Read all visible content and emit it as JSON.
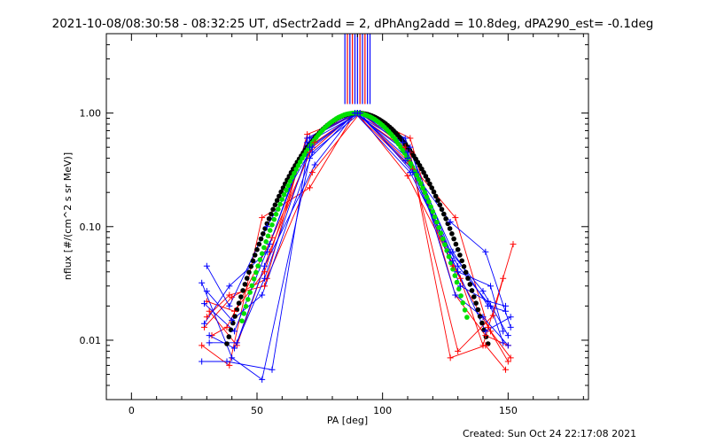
{
  "chart_data": {
    "type": "scatter",
    "title": "2021-10-08/08:30:58 - 08:32:25 UT, dSectr2add = 2, dPhAng2add = 10.8deg, dPA290_est= -0.1deg",
    "xlabel": "PA [deg]",
    "ylabel": "nflux [#/(cm^2 s sr MeV)]",
    "xlim": [
      -10,
      182
    ],
    "ylim": [
      0.003,
      5.0
    ],
    "yscale": "log",
    "x_ticks": [
      0,
      50,
      100,
      150
    ],
    "y_ticks": [
      0.01,
      0.1,
      1.0
    ],
    "y_tick_labels": [
      "0.01",
      "0.10",
      "1.00"
    ],
    "footer": "Created: Sun Oct 24 22:17:08 2021",
    "vertical_lines": {
      "x": [
        85,
        86,
        87,
        88,
        89,
        90,
        91,
        92,
        93,
        94,
        95
      ],
      "colors": [
        "#0000ff",
        "#ff0000",
        "#0000ff",
        "#ff0000",
        "#0000ff",
        "#0000ff",
        "#ff0000",
        "#0000ff",
        "#ff0000",
        "#0000ff",
        "#0000ff"
      ],
      "y_from": 1.2
    },
    "series": [
      {
        "name": "red-1",
        "color": "#ff0000",
        "x": [
          28,
          39,
          52,
          71,
          89,
          111,
          127,
          141,
          149
        ],
        "y": [
          0.009,
          0.006,
          0.12,
          0.22,
          1.0,
          0.45,
          0.007,
          0.009,
          0.0055
        ]
      },
      {
        "name": "red-2",
        "color": "#ff0000",
        "x": [
          30,
          41,
          53,
          70,
          90,
          110,
          129,
          142,
          150
        ],
        "y": [
          0.022,
          0.018,
          0.04,
          0.6,
          1.0,
          0.38,
          0.12,
          0.013,
          0.0065
        ]
      },
      {
        "name": "red-3",
        "color": "#ff0000",
        "x": [
          29,
          40,
          54,
          72,
          91,
          109,
          128,
          143,
          151
        ],
        "y": [
          0.013,
          0.024,
          0.035,
          0.3,
          1.0,
          0.5,
          0.045,
          0.012,
          0.007
        ]
      },
      {
        "name": "red-4",
        "color": "#ff0000",
        "x": [
          31,
          42,
          55,
          71,
          89,
          112,
          130,
          144,
          148
        ],
        "y": [
          0.018,
          0.009,
          0.06,
          0.45,
          1.0,
          0.32,
          0.008,
          0.0165,
          0.035
        ]
      },
      {
        "name": "red-5",
        "color": "#ff0000",
        "x": [
          32,
          38,
          56,
          73,
          90,
          110,
          131,
          140,
          152
        ],
        "y": [
          0.011,
          0.013,
          0.08,
          0.55,
          1.0,
          0.28,
          0.035,
          0.009,
          0.07
        ]
      },
      {
        "name": "red-6",
        "color": "#ff0000",
        "x": [
          30,
          39,
          53,
          70,
          91,
          111,
          129,
          141,
          150
        ],
        "y": [
          0.016,
          0.025,
          0.03,
          0.65,
          1.0,
          0.6,
          0.025,
          0.011,
          0.009
        ]
      },
      {
        "name": "blue-1",
        "color": "#0000ff",
        "x": [
          28,
          40,
          52,
          71,
          89,
          110,
          128,
          142,
          149
        ],
        "y": [
          0.032,
          0.007,
          0.0045,
          0.4,
          1.0,
          0.45,
          0.06,
          0.02,
          0.018
        ]
      },
      {
        "name": "blue-2",
        "color": "#0000ff",
        "x": [
          30,
          39,
          54,
          72,
          90,
          109,
          127,
          141,
          151
        ],
        "y": [
          0.045,
          0.02,
          0.1,
          0.5,
          1.0,
          0.38,
          0.11,
          0.06,
          0.013
        ]
      },
      {
        "name": "blue-3",
        "color": "#0000ff",
        "x": [
          29,
          41,
          55,
          70,
          91,
          112,
          130,
          143,
          148
        ],
        "y": [
          0.021,
          0.012,
          0.07,
          0.55,
          1.0,
          0.3,
          0.04,
          0.03,
          0.012
        ]
      },
      {
        "name": "blue-4",
        "color": "#0000ff",
        "x": [
          31,
          42,
          53,
          73,
          89,
          111,
          129,
          140,
          150
        ],
        "y": [
          0.0095,
          0.0095,
          0.045,
          0.35,
          1.0,
          0.5,
          0.025,
          0.016,
          0.009
        ]
      },
      {
        "name": "blue-5",
        "color": "#0000ff",
        "x": [
          28,
          38,
          56,
          71,
          90,
          110,
          131,
          142,
          149
        ],
        "y": [
          0.0065,
          0.0065,
          0.0055,
          0.6,
          1.0,
          0.4,
          0.03,
          0.022,
          0.02
        ]
      },
      {
        "name": "blue-6",
        "color": "#0000ff",
        "x": [
          30,
          40,
          52,
          72,
          91,
          108,
          128,
          141,
          151
        ],
        "y": [
          0.027,
          0.015,
          0.025,
          0.45,
          1.0,
          0.55,
          0.05,
          0.012,
          0.016
        ]
      },
      {
        "name": "blue-7",
        "color": "#0000ff",
        "x": [
          29,
          39,
          54,
          70,
          89,
          111,
          130,
          143,
          148
        ],
        "y": [
          0.014,
          0.03,
          0.06,
          0.6,
          1.0,
          0.3,
          0.045,
          0.02,
          0.0095
        ]
      },
      {
        "name": "blue-8",
        "color": "#0000ff",
        "x": [
          31,
          41,
          53,
          71,
          90,
          109,
          127,
          140,
          150
        ],
        "y": [
          0.011,
          0.0085,
          0.035,
          0.5,
          1.0,
          0.6,
          0.06,
          0.027,
          0.011
        ]
      }
    ],
    "fit_curves": [
      {
        "name": "black-fit",
        "color": "#000000",
        "center": 90,
        "sigma": 17.0,
        "x_min": 38,
        "x_max": 142
      },
      {
        "name": "green-fit",
        "color": "#00e000",
        "center": 89,
        "sigma": 15.5,
        "x_min": 44,
        "x_max": 134
      }
    ]
  }
}
